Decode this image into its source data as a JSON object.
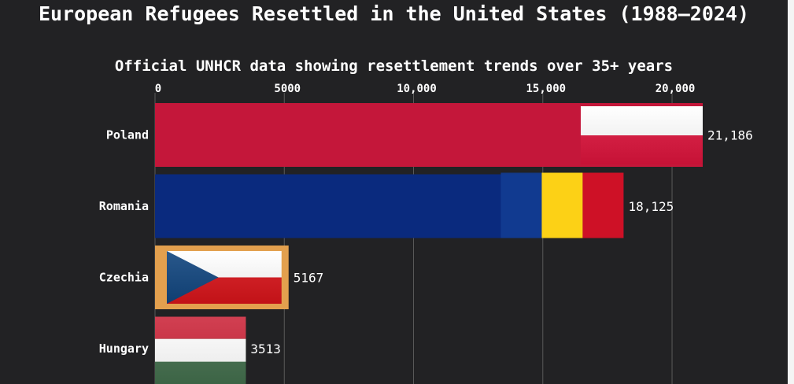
{
  "chart_data": {
    "type": "bar",
    "orientation": "horizontal",
    "title": "European Refugees Resettled in the United States (1988–2024)",
    "subtitle": "Official UNHCR data showing resettlement trends over 35+ years",
    "xlabel": "",
    "ylabel": "",
    "xlim": [
      0,
      21186
    ],
    "x_ticks": [
      0,
      5000,
      10000,
      15000,
      20000
    ],
    "x_tick_labels": [
      "0",
      "5000",
      "10,000",
      "15,000",
      "20,000"
    ],
    "grid": true,
    "categories": [
      "Poland",
      "Romania",
      "Czechia",
      "Hungary"
    ],
    "values": [
      21186,
      18125,
      5167,
      3513
    ],
    "value_labels": [
      "21,186",
      "18,125",
      "5167",
      "3513"
    ],
    "colors": [
      "#c4173a",
      "#0a2a7e",
      "#e3a04e",
      "#3c6b3a"
    ],
    "flag_icons": [
      "poland-flag-icon",
      "romania-flag-icon",
      "czechia-flag-icon",
      "hungary-flag-icon"
    ]
  },
  "colors": {
    "background": "#222224",
    "page": "#f4f4f4",
    "text": "#ffffff",
    "grid": "#5a5a5a"
  }
}
